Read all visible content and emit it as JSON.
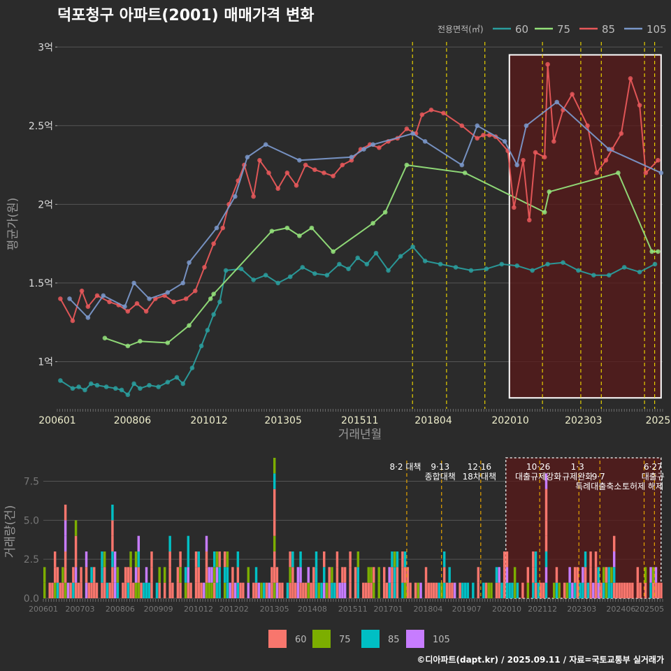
{
  "title": "덕포청구 아파트(2001) 매매가격 변화",
  "credit": "©디아파트(dapt.kr) / 2025.09.11 / 자료=국토교통부 실거래가",
  "colors": {
    "s60": "#2a9d9d",
    "s75": "#93e07a",
    "s85": "#e8585a",
    "s105": "#7a97c9",
    "b60": "#f8766d",
    "b75": "#7cae00",
    "b85": "#00bfc4",
    "b105": "#c77cff",
    "policy": "#e6cf00",
    "policy_bottom": "#e6a400",
    "highlight": "#5a1a1a"
  },
  "chart_data": [
    {
      "type": "line",
      "xlabel": "거래년월",
      "ylabel": "평균가(원)",
      "ylim": [
        0.7,
        3.05
      ],
      "x_ticks": [
        "200601",
        "200806",
        "201012",
        "201305",
        "201511",
        "201804",
        "202010",
        "202303",
        "2025"
      ],
      "y_ticks": [
        "1억",
        "1.5억",
        "2억",
        "2.5억",
        "3억"
      ],
      "legend_title": "전용면적(㎡)",
      "legend": [
        "60",
        "75",
        "85",
        "105"
      ],
      "policy_dates": [
        2017.59,
        2018.7,
        2019.95,
        2021.83,
        2023.08,
        2023.75,
        2025.16,
        2025.49
      ],
      "highlight_range": [
        2020.75,
        2025.7
      ],
      "series": [
        {
          "name": "60",
          "unit": "억",
          "points": [
            [
              2006.1,
              0.88
            ],
            [
              2006.5,
              0.83
            ],
            [
              2006.7,
              0.84
            ],
            [
              2006.9,
              0.82
            ],
            [
              2007.1,
              0.86
            ],
            [
              2007.3,
              0.85
            ],
            [
              2007.6,
              0.84
            ],
            [
              2007.9,
              0.83
            ],
            [
              2008.1,
              0.82
            ],
            [
              2008.3,
              0.79
            ],
            [
              2008.5,
              0.86
            ],
            [
              2008.7,
              0.83
            ],
            [
              2009.0,
              0.85
            ],
            [
              2009.3,
              0.84
            ],
            [
              2009.6,
              0.87
            ],
            [
              2009.9,
              0.9
            ],
            [
              2010.1,
              0.86
            ],
            [
              2010.4,
              0.96
            ],
            [
              2010.7,
              1.1
            ],
            [
              2010.9,
              1.2
            ],
            [
              2011.1,
              1.3
            ],
            [
              2011.3,
              1.38
            ],
            [
              2011.5,
              1.58
            ],
            [
              2012.0,
              1.59
            ],
            [
              2012.4,
              1.52
            ],
            [
              2012.8,
              1.55
            ],
            [
              2013.2,
              1.5
            ],
            [
              2013.6,
              1.54
            ],
            [
              2014.0,
              1.6
            ],
            [
              2014.4,
              1.56
            ],
            [
              2014.8,
              1.55
            ],
            [
              2015.2,
              1.62
            ],
            [
              2015.5,
              1.59
            ],
            [
              2015.8,
              1.66
            ],
            [
              2016.1,
              1.62
            ],
            [
              2016.4,
              1.69
            ],
            [
              2016.8,
              1.58
            ],
            [
              2017.2,
              1.67
            ],
            [
              2017.6,
              1.73
            ],
            [
              2018.0,
              1.64
            ],
            [
              2018.5,
              1.62
            ],
            [
              2019.0,
              1.6
            ],
            [
              2019.5,
              1.58
            ],
            [
              2020.0,
              1.59
            ],
            [
              2020.5,
              1.62
            ],
            [
              2021.0,
              1.61
            ],
            [
              2021.5,
              1.58
            ],
            [
              2022.0,
              1.62
            ],
            [
              2022.5,
              1.63
            ],
            [
              2023.0,
              1.58
            ],
            [
              2023.5,
              1.55
            ],
            [
              2024.0,
              1.55
            ],
            [
              2024.5,
              1.6
            ],
            [
              2025.0,
              1.57
            ],
            [
              2025.5,
              1.62
            ]
          ]
        },
        {
          "name": "75",
          "unit": "억",
          "points": [
            [
              2007.55,
              1.15
            ],
            [
              2008.3,
              1.1
            ],
            [
              2008.7,
              1.13
            ],
            [
              2009.6,
              1.12
            ],
            [
              2010.3,
              1.23
            ],
            [
              2011.0,
              1.4
            ],
            [
              2011.1,
              1.43
            ],
            [
              2013.0,
              1.83
            ],
            [
              2013.5,
              1.85
            ],
            [
              2013.9,
              1.8
            ],
            [
              2014.3,
              1.85
            ],
            [
              2015.0,
              1.7
            ],
            [
              2016.3,
              1.88
            ],
            [
              2016.7,
              1.95
            ],
            [
              2017.4,
              2.25
            ],
            [
              2019.3,
              2.2
            ],
            [
              2021.9,
              1.95
            ],
            [
              2022.05,
              2.08
            ],
            [
              2024.3,
              2.2
            ],
            [
              2025.4,
              1.7
            ],
            [
              2025.6,
              1.7
            ]
          ]
        },
        {
          "name": "85",
          "unit": "억",
          "points": [
            [
              2006.1,
              1.4
            ],
            [
              2006.5,
              1.26
            ],
            [
              2006.8,
              1.45
            ],
            [
              2007.0,
              1.35
            ],
            [
              2007.3,
              1.42
            ],
            [
              2007.7,
              1.38
            ],
            [
              2008.0,
              1.36
            ],
            [
              2008.3,
              1.32
            ],
            [
              2008.6,
              1.37
            ],
            [
              2008.9,
              1.32
            ],
            [
              2009.2,
              1.4
            ],
            [
              2009.5,
              1.42
            ],
            [
              2009.8,
              1.38
            ],
            [
              2010.2,
              1.4
            ],
            [
              2010.5,
              1.45
            ],
            [
              2010.8,
              1.6
            ],
            [
              2011.1,
              1.75
            ],
            [
              2011.4,
              1.85
            ],
            [
              2011.6,
              2.0
            ],
            [
              2011.9,
              2.15
            ],
            [
              2012.1,
              2.25
            ],
            [
              2012.4,
              2.05
            ],
            [
              2012.6,
              2.28
            ],
            [
              2012.9,
              2.2
            ],
            [
              2013.2,
              2.1
            ],
            [
              2013.5,
              2.2
            ],
            [
              2013.8,
              2.12
            ],
            [
              2014.1,
              2.25
            ],
            [
              2014.4,
              2.22
            ],
            [
              2014.7,
              2.2
            ],
            [
              2015.0,
              2.18
            ],
            [
              2015.3,
              2.25
            ],
            [
              2015.6,
              2.28
            ],
            [
              2015.9,
              2.35
            ],
            [
              2016.2,
              2.38
            ],
            [
              2016.5,
              2.36
            ],
            [
              2016.8,
              2.4
            ],
            [
              2017.1,
              2.42
            ],
            [
              2017.4,
              2.48
            ],
            [
              2017.7,
              2.45
            ],
            [
              2017.9,
              2.57
            ],
            [
              2018.2,
              2.6
            ],
            [
              2018.6,
              2.58
            ],
            [
              2019.2,
              2.5
            ],
            [
              2019.7,
              2.42
            ],
            [
              2019.9,
              2.44
            ],
            [
              2020.1,
              2.44
            ],
            [
              2020.3,
              2.43
            ],
            [
              2020.7,
              2.34
            ],
            [
              2020.9,
              1.98
            ],
            [
              2021.2,
              2.28
            ],
            [
              2021.4,
              1.9
            ],
            [
              2021.6,
              2.33
            ],
            [
              2021.9,
              2.3
            ],
            [
              2022.0,
              2.89
            ],
            [
              2022.2,
              2.4
            ],
            [
              2022.5,
              2.6
            ],
            [
              2022.8,
              2.7
            ],
            [
              2023.3,
              2.5
            ],
            [
              2023.6,
              2.2
            ],
            [
              2023.9,
              2.28
            ],
            [
              2024.1,
              2.35
            ],
            [
              2024.4,
              2.45
            ],
            [
              2024.7,
              2.8
            ],
            [
              2025.0,
              2.63
            ],
            [
              2025.2,
              2.2
            ],
            [
              2025.6,
              2.28
            ]
          ]
        },
        {
          "name": "105",
          "unit": "억",
          "points": [
            [
              2006.4,
              1.4
            ],
            [
              2007.0,
              1.28
            ],
            [
              2007.5,
              1.42
            ],
            [
              2008.2,
              1.35
            ],
            [
              2008.5,
              1.5
            ],
            [
              2009.0,
              1.4
            ],
            [
              2009.6,
              1.44
            ],
            [
              2010.1,
              1.5
            ],
            [
              2010.3,
              1.63
            ],
            [
              2011.2,
              1.85
            ],
            [
              2011.8,
              2.05
            ],
            [
              2012.2,
              2.3
            ],
            [
              2012.8,
              2.38
            ],
            [
              2013.9,
              2.28
            ],
            [
              2015.6,
              2.3
            ],
            [
              2016.0,
              2.35
            ],
            [
              2016.3,
              2.38
            ],
            [
              2017.6,
              2.45
            ],
            [
              2018.0,
              2.4
            ],
            [
              2019.2,
              2.25
            ],
            [
              2019.7,
              2.5
            ],
            [
              2020.6,
              2.4
            ],
            [
              2021.0,
              2.25
            ],
            [
              2021.3,
              2.5
            ],
            [
              2022.3,
              2.65
            ],
            [
              2024.0,
              2.35
            ],
            [
              2025.7,
              2.2
            ]
          ]
        }
      ]
    },
    {
      "type": "bar",
      "ylabel": "거래량(건)",
      "ylim": [
        0,
        9
      ],
      "y_ticks": [
        "0.0",
        "2.5",
        "5.0",
        "7.5"
      ],
      "x_ticks": [
        "200601",
        "200703",
        "200806",
        "200909",
        "201012",
        "201202",
        "201305",
        "201408",
        "201511",
        "201701",
        "201804",
        "201907",
        "202010",
        "202112",
        "202303",
        "202406",
        "202505"
      ],
      "legend": [
        "60",
        "75",
        "85",
        "105"
      ],
      "policy_labels": [
        {
          "date": 2017.59,
          "lines": [
            "8·2 대책"
          ]
        },
        {
          "date": 2018.7,
          "lines": [
            "9·13",
            "종합대책"
          ]
        },
        {
          "date": 2019.95,
          "lines": [
            "12·16",
            "18차대책"
          ]
        },
        {
          "date": 2021.83,
          "lines": [
            "10·26",
            "대출규제강화"
          ]
        },
        {
          "date": 2023.08,
          "lines": [
            "1·3",
            "규제완화"
          ]
        },
        {
          "date": 2023.75,
          "lines": [
            "",
            "9·7",
            "특례대출축소"
          ]
        },
        {
          "date": 2025.16,
          "lines": [
            "",
            "",
            "토허제 해제"
          ]
        },
        {
          "date": 2025.49,
          "lines": [
            "6·27",
            "대출규"
          ]
        }
      ],
      "peaks": [
        [
          2006.0,
          2
        ],
        [
          2006.7,
          6
        ],
        [
          2007.0,
          5
        ],
        [
          2007.3,
          3
        ],
        [
          2007.8,
          3
        ],
        [
          2008.2,
          6
        ],
        [
          2008.6,
          2
        ],
        [
          2009.0,
          4
        ],
        [
          2009.4,
          3
        ],
        [
          2009.8,
          2
        ],
        [
          2010.0,
          4
        ],
        [
          2010.3,
          3
        ],
        [
          2010.6,
          4
        ],
        [
          2010.9,
          3
        ],
        [
          2011.2,
          4
        ],
        [
          2011.5,
          3
        ],
        [
          2011.8,
          3
        ],
        [
          2012.2,
          3
        ],
        [
          2012.5,
          2
        ],
        [
          2012.9,
          1
        ],
        [
          2013.3,
          9
        ],
        [
          2013.6,
          1
        ],
        [
          2013.9,
          3
        ],
        [
          2014.2,
          3
        ],
        [
          2014.6,
          2
        ],
        [
          2014.9,
          3
        ],
        [
          2015.3,
          3
        ],
        [
          2015.6,
          2
        ],
        [
          2015.9,
          2
        ],
        [
          2016.3,
          2
        ],
        [
          2016.7,
          2
        ],
        [
          2017.0,
          2
        ],
        [
          2017.4,
          3
        ],
        [
          2017.8,
          1
        ],
        [
          2018.2,
          2
        ],
        [
          2018.6,
          1
        ],
        [
          2019.0,
          1
        ],
        [
          2019.4,
          1
        ],
        [
          2019.8,
          2
        ],
        [
          2020.2,
          1
        ],
        [
          2020.6,
          1
        ],
        [
          2021.0,
          2
        ],
        [
          2021.4,
          2
        ],
        [
          2021.8,
          1
        ],
        [
          2022.0,
          8
        ],
        [
          2022.3,
          2
        ],
        [
          2022.7,
          1
        ],
        [
          2023.0,
          2
        ],
        [
          2023.4,
          3
        ],
        [
          2023.8,
          2
        ],
        [
          2024.2,
          4
        ],
        [
          2024.6,
          1
        ],
        [
          2025.0,
          1
        ],
        [
          2025.4,
          2
        ]
      ]
    }
  ]
}
